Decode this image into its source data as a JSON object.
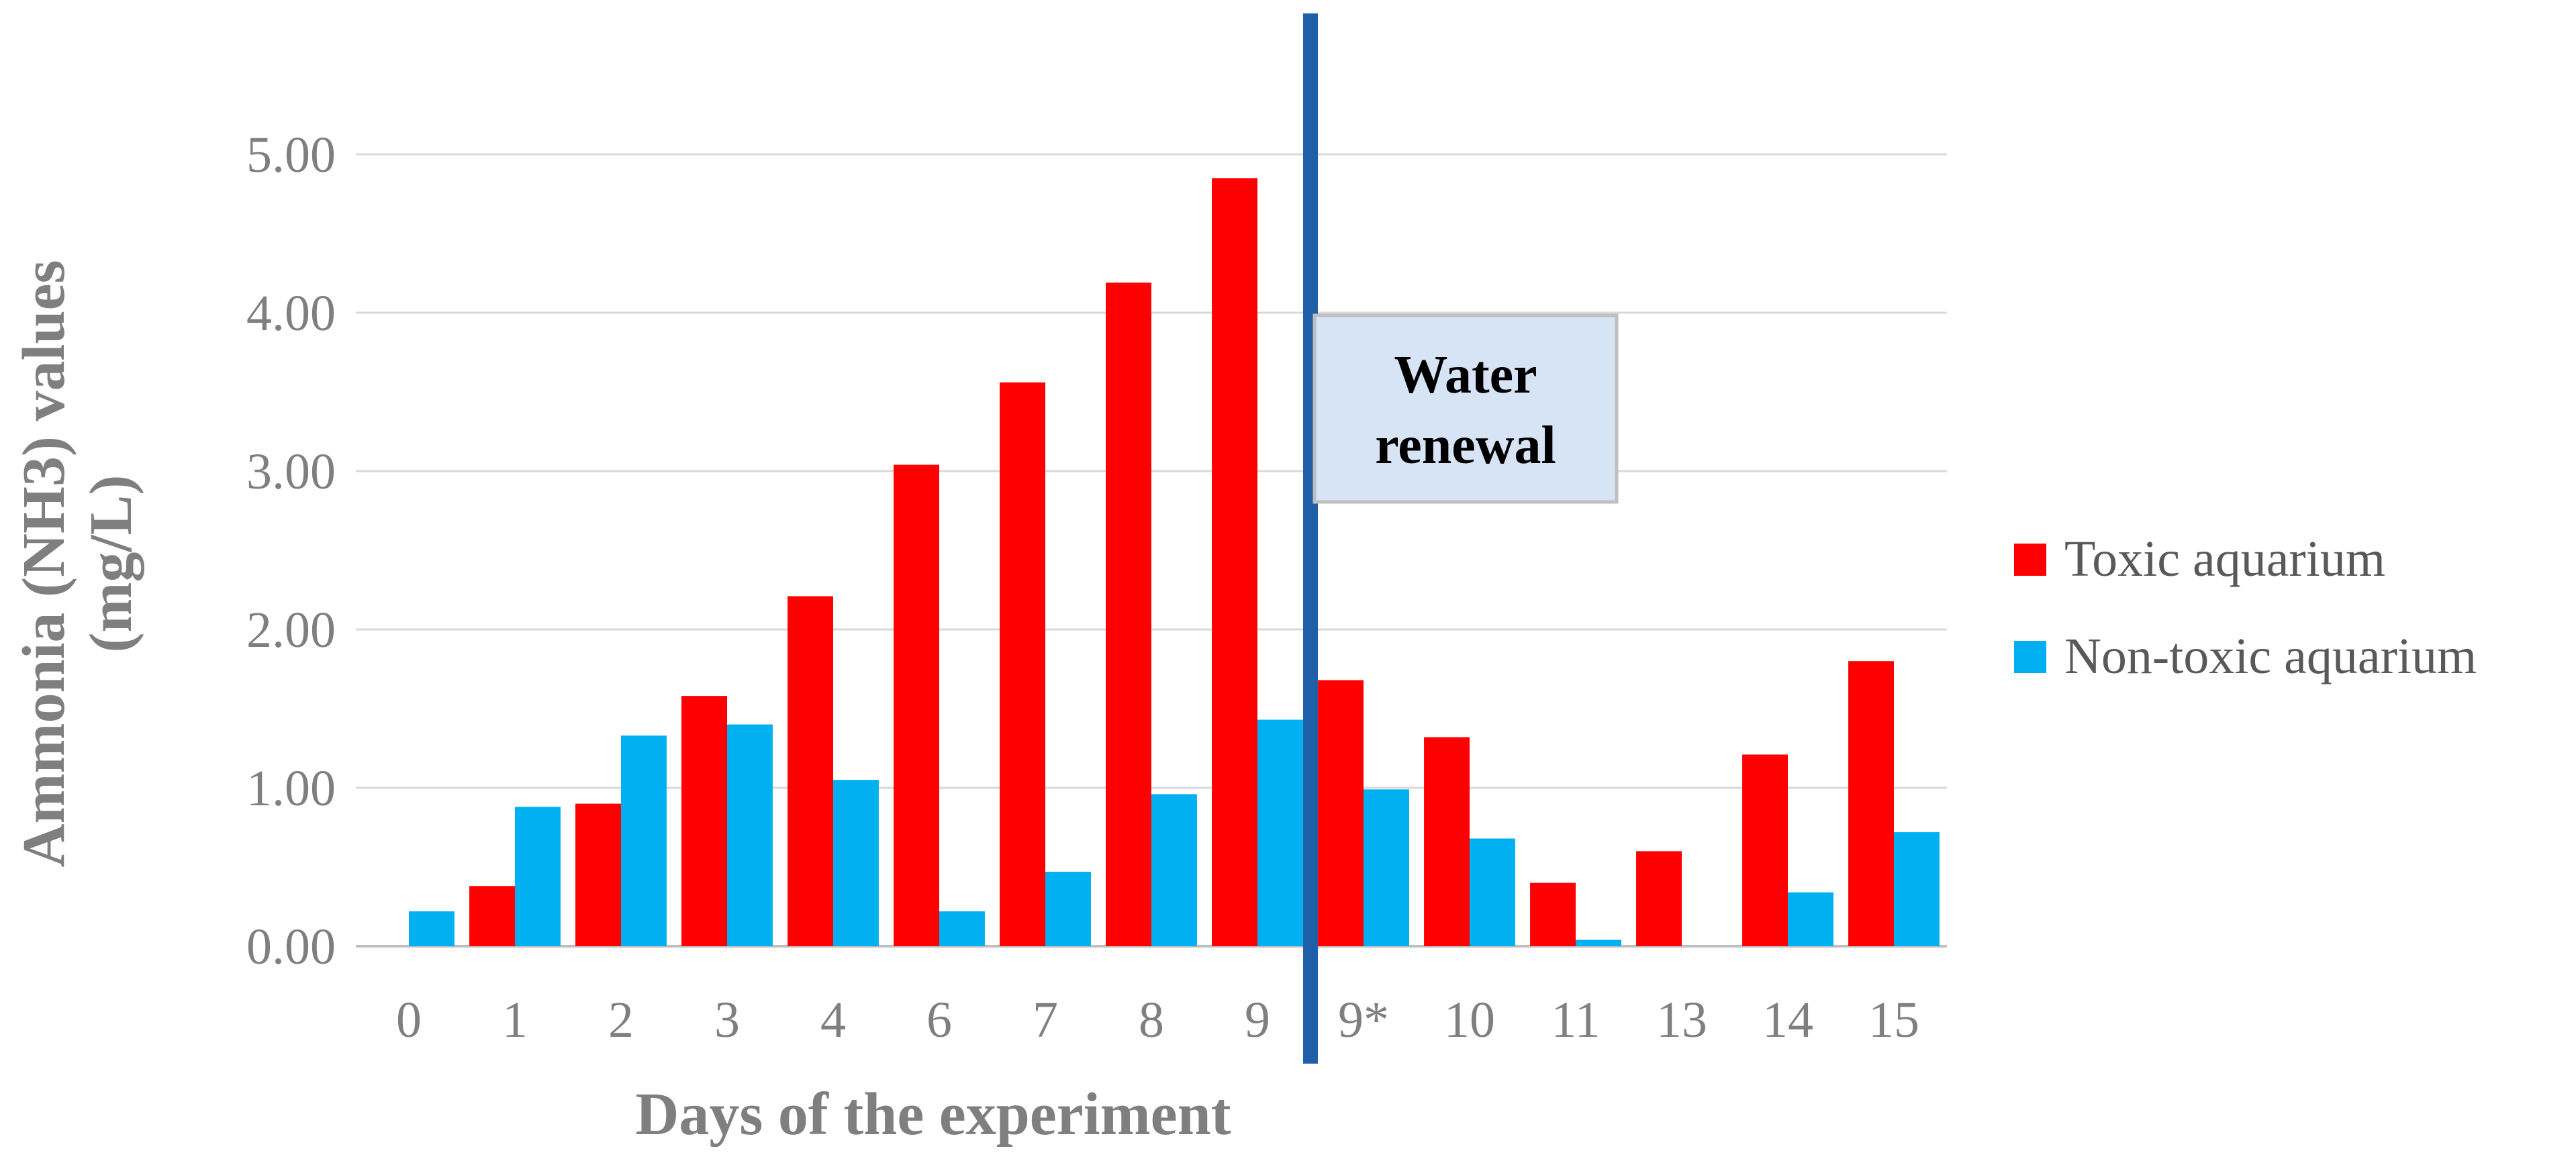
{
  "chart_data": {
    "type": "bar",
    "title": "",
    "xlabel": "Days of the experiment",
    "ylabel_lines": [
      "Ammonia (NH3) values",
      "(mg/L)"
    ],
    "ylim": [
      0,
      5
    ],
    "yticks": [
      "0.00",
      "1.00",
      "2.00",
      "3.00",
      "4.00",
      "5.00"
    ],
    "grid": true,
    "legend_position": "right",
    "categories": [
      "0",
      "1",
      "2",
      "3",
      "4",
      "6",
      "7",
      "8",
      "9",
      "9*",
      "10",
      "11",
      "13",
      "14",
      "15"
    ],
    "series": [
      {
        "name": "Toxic aquarium",
        "color": "#ff0000",
        "values": [
          0,
          0.38,
          0.9,
          1.58,
          2.21,
          3.04,
          3.56,
          4.19,
          4.85,
          1.68,
          1.32,
          0.4,
          0.6,
          1.21,
          1.8
        ]
      },
      {
        "name": "Non-toxic aquarium",
        "color": "#00b0f0",
        "values": [
          0.22,
          0.88,
          1.33,
          1.4,
          1.05,
          0.22,
          0.47,
          0.96,
          1.43,
          0.99,
          0.68,
          0.04,
          0,
          0.34,
          0.72
        ]
      }
    ],
    "annotation": {
      "lines": [
        "Water",
        "renewal"
      ],
      "after_category": "9",
      "line_color": "#1f5fa8",
      "box_fill": "#d6e4f5",
      "box_border": "#bfbfbf"
    }
  }
}
